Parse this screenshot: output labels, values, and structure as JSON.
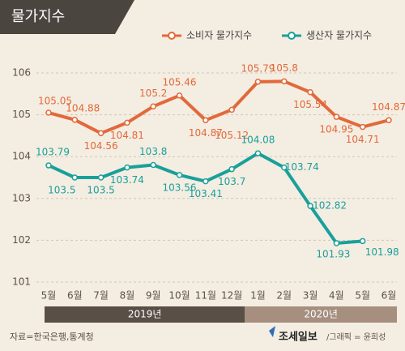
{
  "chart_data": {
    "type": "line",
    "title": "물가지수",
    "categories": [
      "5월",
      "6월",
      "7월",
      "8월",
      "9월",
      "10월",
      "11월",
      "12월",
      "1월",
      "2월",
      "3월",
      "4월",
      "5월",
      "6월"
    ],
    "series": [
      {
        "name": "소비자 물가지수",
        "color": "#e2693a",
        "values": [
          105.05,
          104.88,
          104.56,
          104.81,
          105.2,
          105.46,
          104.87,
          105.12,
          105.79,
          105.8,
          105.54,
          104.95,
          104.71,
          104.87
        ]
      },
      {
        "name": "생산자 물가지수",
        "color": "#19a09a",
        "values": [
          103.79,
          103.5,
          103.5,
          103.74,
          103.8,
          103.56,
          103.41,
          103.7,
          104.08,
          103.74,
          102.82,
          101.93,
          101.98,
          null
        ]
      }
    ],
    "ylim": [
      101,
      106
    ],
    "yticks": [
      101,
      102,
      103,
      104,
      105,
      106
    ],
    "grid": true,
    "years": [
      "2019년",
      "2020년"
    ],
    "source": "자료=한국은행,통계청",
    "brand": "조세일보",
    "credit": "/그래픽 = 윤희성"
  }
}
